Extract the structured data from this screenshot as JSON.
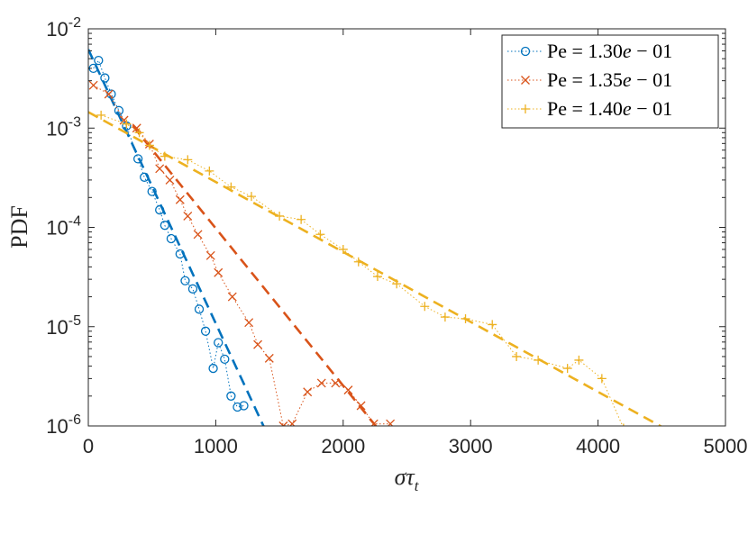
{
  "chart_data": {
    "type": "scatter",
    "xlabel": "στ",
    "xlabel_sub": "t",
    "ylabel": "PDF",
    "xlim": [
      0,
      5000
    ],
    "ylim_log10": [
      -6,
      -2
    ],
    "y_scale": "log",
    "x_ticks": [
      "0",
      "1000",
      "2000",
      "3000",
      "4000",
      "5000"
    ],
    "y_ticks": [
      {
        "base": "10",
        "exp": "-6"
      },
      {
        "base": "10",
        "exp": "-5"
      },
      {
        "base": "10",
        "exp": "-4"
      },
      {
        "base": "10",
        "exp": "-3"
      },
      {
        "base": "10",
        "exp": "-2"
      }
    ],
    "legend_position": "top-right",
    "series": [
      {
        "name": "Pe = 1.30e − 01",
        "legend_main": "Pe = 1.30",
        "legend_e": "e",
        "legend_tail": " − 01",
        "color": "#0072BD",
        "marker": "circle",
        "x": [
          40,
          80,
          130,
          180,
          240,
          300,
          390,
          440,
          500,
          560,
          600,
          650,
          720,
          760,
          820,
          870,
          920,
          980,
          1020,
          1070,
          1120,
          1170,
          1220
        ],
        "y": [
          0.004,
          0.0048,
          0.0032,
          0.0022,
          0.0015,
          0.00105,
          0.00049,
          0.00032,
          0.00023,
          0.00015,
          0.000105,
          7.7e-05,
          5.4e-05,
          2.9e-05,
          2.4e-05,
          1.5e-05,
          9e-06,
          3.8e-06,
          6.9e-06,
          4.7e-06,
          2e-06,
          1.55e-06,
          1.6e-06
        ],
        "fit": {
          "x": [
            0,
            1400
          ],
          "y": [
            0.0062,
            8.5e-07
          ]
        }
      },
      {
        "name": "Pe = 1.35e − 01",
        "legend_main": "Pe = 1.35",
        "legend_e": "e",
        "legend_tail": " − 01",
        "color": "#D95319",
        "marker": "cross",
        "x": [
          40,
          160,
          280,
          380,
          480,
          560,
          640,
          720,
          780,
          860,
          960,
          1020,
          1130,
          1260,
          1330,
          1420,
          1530,
          1600,
          1720,
          1830,
          1940,
          2040,
          2140,
          2240,
          2370
        ],
        "y": [
          0.0027,
          0.0022,
          0.0012,
          0.001,
          0.00069,
          0.00039,
          0.0003,
          0.00019,
          0.00013,
          8.5e-05,
          5.2e-05,
          3.5e-05,
          2e-05,
          1.1e-05,
          6.6e-06,
          4.8e-06,
          1e-06,
          1.05e-06,
          2.2e-06,
          2.7e-06,
          2.7e-06,
          2.3e-06,
          1.6e-06,
          1.05e-06,
          1.05e-06
        ],
        "fit": {
          "x": [
            350,
            2300
          ],
          "y": [
            0.00105,
            8.5e-07
          ]
        }
      },
      {
        "name": "Pe = 1.40e − 01",
        "legend_main": "Pe = 1.40",
        "legend_e": "e",
        "legend_tail": " − 01",
        "color": "#EDB120",
        "marker": "plus",
        "x": [
          100,
          300,
          400,
          480,
          600,
          780,
          950,
          1120,
          1280,
          1500,
          1670,
          1820,
          2000,
          2120,
          2270,
          2420,
          2640,
          2800,
          2960,
          3170,
          3360,
          3530,
          3760,
          3850,
          4030,
          4200
        ],
        "y": [
          0.00135,
          0.0011,
          0.0009,
          0.00067,
          0.00052,
          0.00048,
          0.00037,
          0.000255,
          0.000205,
          0.00013,
          0.00012,
          8.5e-05,
          6e-05,
          4.5e-05,
          3.2e-05,
          2.7e-05,
          1.6e-05,
          1.25e-05,
          1.2e-05,
          1.05e-05,
          5e-06,
          4.6e-06,
          3.8e-06,
          4.6e-06,
          3e-06,
          9.5e-07
        ],
        "fit": {
          "x": [
            0,
            4500
          ],
          "y": [
            0.00145,
            9.8e-07
          ]
        }
      }
    ]
  }
}
